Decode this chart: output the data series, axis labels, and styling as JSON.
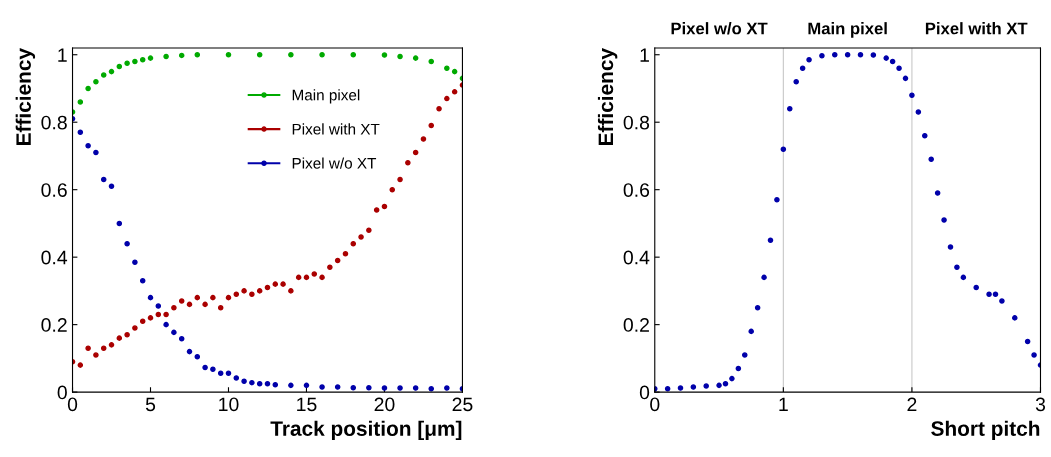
{
  "chart_data": [
    {
      "type": "scatter",
      "xlabel": "Track position [μm]",
      "ylabel": "Efficiency",
      "xlim": [
        0,
        25
      ],
      "ylim": [
        0,
        1.02
      ],
      "xticks": [
        0,
        5,
        10,
        15,
        20,
        25
      ],
      "yticks": [
        0,
        0.2,
        0.4,
        0.6,
        0.8,
        1
      ],
      "marker": "circle",
      "legend": "top",
      "grid": false,
      "series": [
        {
          "name": "Main pixel",
          "color": "#00aa00",
          "x": [
            0,
            0.5,
            1,
            1.5,
            2,
            2.5,
            3,
            3.5,
            4,
            4.5,
            5,
            6,
            7,
            8,
            10,
            12,
            14,
            16,
            18,
            20,
            21,
            22,
            23,
            24,
            24.5,
            25
          ],
          "values": [
            0.83,
            0.86,
            0.9,
            0.92,
            0.94,
            0.95,
            0.965,
            0.975,
            0.98,
            0.985,
            0.99,
            0.995,
            0.998,
            1,
            1,
            1,
            1,
            1,
            1,
            0.999,
            0.995,
            0.99,
            0.98,
            0.96,
            0.95,
            0.93
          ]
        },
        {
          "name": "Pixel with XT",
          "color": "#aa0000",
          "x": [
            0,
            0.5,
            1,
            1.5,
            2,
            2.5,
            3,
            3.5,
            4,
            4.5,
            5,
            5.5,
            6,
            6.5,
            7,
            7.5,
            8,
            8.5,
            9,
            9.5,
            10,
            10.5,
            11,
            11.5,
            12,
            12.5,
            13,
            13.5,
            14,
            14.5,
            15,
            15.5,
            16,
            16.5,
            17,
            17.5,
            18,
            18.5,
            19,
            19.5,
            20,
            20.5,
            21,
            21.5,
            22,
            22.5,
            23,
            23.5,
            24,
            24.5,
            25
          ],
          "values": [
            0.09,
            0.08,
            0.13,
            0.11,
            0.13,
            0.14,
            0.16,
            0.17,
            0.19,
            0.21,
            0.22,
            0.23,
            0.23,
            0.25,
            0.27,
            0.26,
            0.28,
            0.26,
            0.28,
            0.25,
            0.28,
            0.29,
            0.3,
            0.29,
            0.3,
            0.31,
            0.32,
            0.32,
            0.3,
            0.34,
            0.34,
            0.35,
            0.34,
            0.37,
            0.39,
            0.41,
            0.44,
            0.46,
            0.48,
            0.54,
            0.55,
            0.6,
            0.63,
            0.68,
            0.71,
            0.75,
            0.79,
            0.84,
            0.87,
            0.89,
            0.91
          ]
        },
        {
          "name": "Pixel w/o XT",
          "color": "#0000aa",
          "x": [
            0,
            0.5,
            1,
            1.5,
            2,
            2.5,
            3,
            3.5,
            4,
            4.5,
            5,
            5.5,
            6,
            6.5,
            7,
            7.5,
            8,
            8.5,
            9,
            9.5,
            10,
            10.5,
            11,
            11.5,
            12,
            12.5,
            13,
            14,
            15,
            16,
            17,
            18,
            19,
            20,
            21,
            22,
            23,
            24,
            25
          ],
          "values": [
            0.81,
            0.77,
            0.73,
            0.71,
            0.63,
            0.61,
            0.5,
            0.44,
            0.385,
            0.33,
            0.28,
            0.255,
            0.2,
            0.177,
            0.158,
            0.12,
            0.105,
            0.073,
            0.068,
            0.056,
            0.056,
            0.042,
            0.032,
            0.028,
            0.025,
            0.025,
            0.022,
            0.02,
            0.02,
            0.015,
            0.015,
            0.013,
            0.013,
            0.012,
            0.012,
            0.012,
            0.01,
            0.012,
            0.01
          ]
        }
      ]
    },
    {
      "type": "scatter",
      "xlabel": "Short pitch",
      "ylabel": "Efficiency",
      "xlim": [
        0,
        3
      ],
      "ylim": [
        0,
        1.02
      ],
      "xticks": [
        0,
        1,
        2,
        3
      ],
      "yticks": [
        0,
        0.2,
        0.4,
        0.6,
        0.8,
        1
      ],
      "marker": "circle",
      "grid": false,
      "annotations": [
        "Pixel w/o XT",
        "Main pixel",
        "Pixel with XT"
      ],
      "ref_lines": [
        {
          "axis": "x",
          "value": 1,
          "color": "#c8c8c8"
        },
        {
          "axis": "x",
          "value": 2,
          "color": "#c8c8c8"
        }
      ],
      "series": [
        {
          "color": "#0000aa",
          "x": [
            0,
            0.1,
            0.2,
            0.3,
            0.4,
            0.5,
            0.55,
            0.6,
            0.65,
            0.7,
            0.75,
            0.8,
            0.85,
            0.9,
            0.95,
            1.0,
            1.05,
            1.1,
            1.15,
            1.2,
            1.3,
            1.4,
            1.5,
            1.6,
            1.7,
            1.8,
            1.85,
            1.9,
            1.95,
            2.0,
            2.05,
            2.1,
            2.15,
            2.2,
            2.25,
            2.3,
            2.35,
            2.4,
            2.5,
            2.6,
            2.65,
            2.7,
            2.8,
            2.9,
            2.95,
            3.0
          ],
          "values": [
            0.01,
            0.01,
            0.012,
            0.015,
            0.018,
            0.02,
            0.025,
            0.04,
            0.07,
            0.11,
            0.18,
            0.25,
            0.34,
            0.45,
            0.57,
            0.72,
            0.84,
            0.92,
            0.96,
            0.985,
            0.997,
            1,
            1,
            1,
            0.999,
            0.99,
            0.98,
            0.96,
            0.93,
            0.88,
            0.83,
            0.76,
            0.69,
            0.59,
            0.51,
            0.43,
            0.37,
            0.34,
            0.31,
            0.29,
            0.29,
            0.27,
            0.22,
            0.15,
            0.11,
            0.08
          ]
        }
      ]
    }
  ]
}
